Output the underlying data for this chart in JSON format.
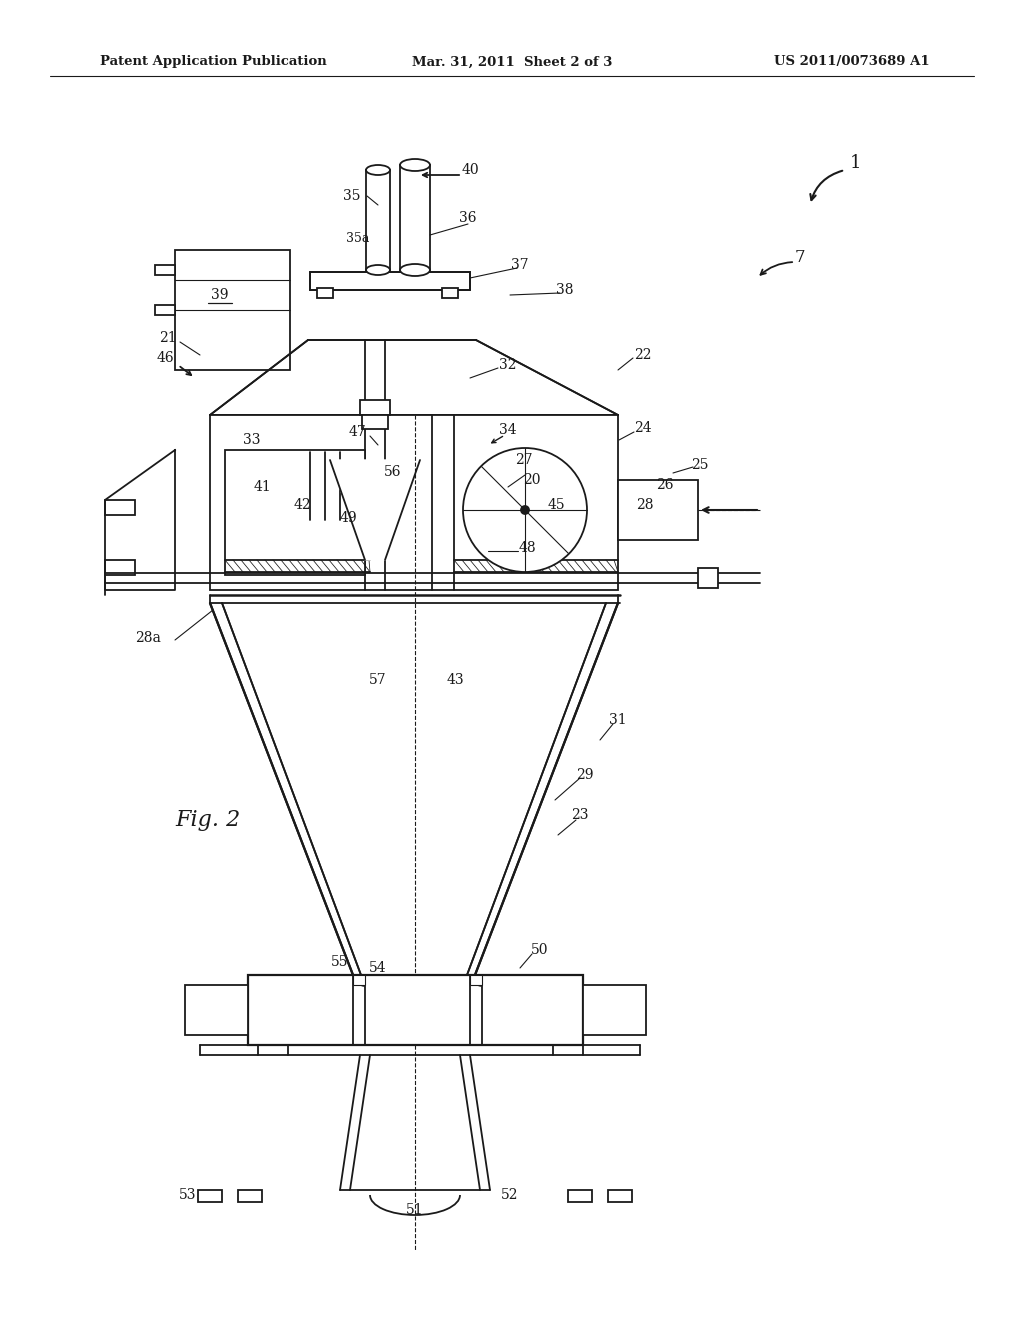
{
  "bg_color": "#ffffff",
  "line_color": "#1a1a1a",
  "header_left": "Patent Application Publication",
  "header_center": "Mar. 31, 2011  Sheet 2 of 3",
  "header_right": "US 2011/0073689 A1",
  "fig_label": "Fig. 2",
  "lw": 1.3,
  "lw_thin": 0.8,
  "lw_thick": 2.0
}
